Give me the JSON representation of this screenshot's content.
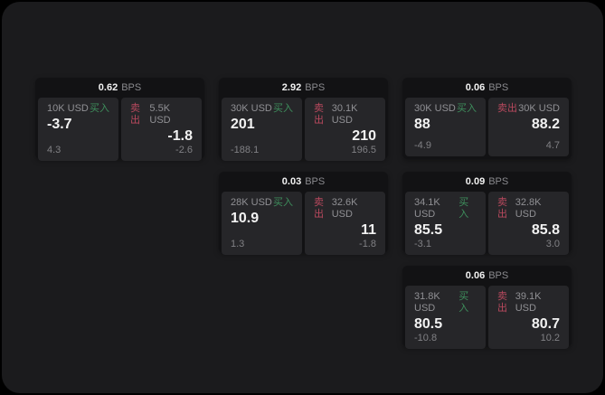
{
  "labels": {
    "bps_unit": "BPS",
    "buy": "买入",
    "sell": "卖出"
  },
  "colors": {
    "buy_accent": "#3e8e5c",
    "sell_accent": "#b9495e",
    "window_bg": "#1b1b1d",
    "card_bg": "#121214",
    "panel_bg": "#262629"
  },
  "cards": [
    {
      "bps": "0.62",
      "buy": {
        "amount": "10K USD",
        "value": "-3.7",
        "delta": "4.3"
      },
      "sell": {
        "amount": "5.5K USD",
        "value": "-1.8",
        "delta": "-2.6"
      }
    },
    {
      "bps": "2.92",
      "buy": {
        "amount": "30K USD",
        "value": "201",
        "delta": "-188.1"
      },
      "sell": {
        "amount": "30.1K USD",
        "value": "210",
        "delta": "196.5"
      }
    },
    {
      "bps": "0.06",
      "buy": {
        "amount": "30K USD",
        "value": "88",
        "delta": "-4.9"
      },
      "sell": {
        "amount": "30K USD",
        "value": "88.2",
        "delta": "4.7"
      }
    },
    {
      "bps": "0.03",
      "buy": {
        "amount": "28K USD",
        "value": "10.9",
        "delta": "1.3"
      },
      "sell": {
        "amount": "32.6K USD",
        "value": "11",
        "delta": "-1.8"
      }
    },
    {
      "bps": "0.09",
      "buy": {
        "amount": "34.1K USD",
        "value": "85.5",
        "delta": "-3.1"
      },
      "sell": {
        "amount": "32.8K USD",
        "value": "85.8",
        "delta": "3.0"
      }
    },
    {
      "bps": "0.06",
      "buy": {
        "amount": "31.8K USD",
        "value": "80.5",
        "delta": "-10.8"
      },
      "sell": {
        "amount": "39.1K USD",
        "value": "80.7",
        "delta": "10.2"
      }
    }
  ]
}
